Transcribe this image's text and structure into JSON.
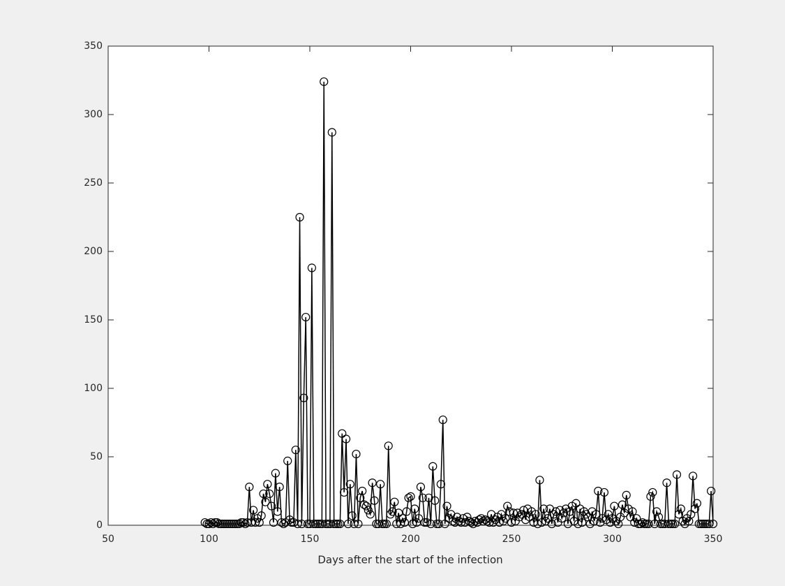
{
  "chart_data": {
    "type": "line",
    "xlabel": "Days after the start of the infection",
    "marker": "circle",
    "box": true,
    "series": [
      {
        "color": "#000000",
        "x": [
          98,
          99,
          100,
          101,
          102,
          103,
          104,
          105,
          106,
          107,
          108,
          109,
          110,
          111,
          112,
          113,
          114,
          115,
          116,
          117,
          118,
          119,
          120,
          121,
          122,
          123,
          124,
          125,
          126,
          127,
          128,
          129,
          130,
          131,
          132,
          133,
          134,
          135,
          136,
          137,
          138,
          139,
          140,
          141,
          142,
          143,
          144,
          145,
          146,
          147,
          148,
          149,
          150,
          151,
          152,
          153,
          154,
          155,
          156,
          157,
          158,
          159,
          160,
          161,
          162,
          163,
          164,
          165,
          166,
          167,
          168,
          169,
          170,
          171,
          172,
          173,
          174,
          175,
          176,
          177,
          178,
          179,
          180,
          181,
          182,
          183,
          184,
          185,
          186,
          187,
          188,
          189,
          190,
          191,
          192,
          193,
          194,
          195,
          196,
          197,
          198,
          199,
          200,
          201,
          202,
          203,
          204,
          205,
          206,
          207,
          208,
          209,
          210,
          211,
          212,
          213,
          214,
          215,
          216,
          217,
          218,
          219,
          220,
          221,
          222,
          223,
          224,
          225,
          226,
          227,
          228,
          229,
          230,
          231,
          232,
          233,
          234,
          235,
          236,
          237,
          238,
          239,
          240,
          241,
          242,
          243,
          244,
          245,
          246,
          247,
          248,
          249,
          250,
          251,
          252,
          253,
          254,
          255,
          256,
          257,
          258,
          259,
          260,
          261,
          262,
          263,
          264,
          265,
          266,
          267,
          268,
          269,
          270,
          271,
          272,
          273,
          274,
          275,
          276,
          277,
          278,
          279,
          280,
          281,
          282,
          283,
          284,
          285,
          286,
          287,
          288,
          289,
          290,
          291,
          292,
          293,
          294,
          295,
          296,
          297,
          298,
          299,
          300,
          301,
          302,
          303,
          304,
          305,
          306,
          307,
          308,
          309,
          310,
          311,
          312,
          313,
          314,
          315,
          316,
          317,
          318,
          319,
          320,
          321,
          322,
          323,
          324,
          325,
          326,
          327,
          328,
          329,
          330,
          331,
          332,
          333,
          334,
          335,
          336,
          337,
          338,
          339,
          340,
          341,
          342,
          343,
          344,
          345,
          346,
          347,
          348,
          349,
          350
        ],
        "values": [
          2,
          1,
          1,
          2,
          1,
          2,
          2,
          1,
          1,
          1,
          1,
          1,
          1,
          1,
          1,
          1,
          1,
          1,
          2,
          2,
          1,
          2,
          28,
          2,
          11,
          2,
          5,
          2,
          7,
          23,
          17,
          30,
          23,
          14,
          2,
          38,
          10,
          28,
          2,
          1,
          2,
          47,
          4,
          2,
          2,
          55,
          1,
          225,
          1,
          93,
          152,
          1,
          1,
          188,
          1,
          1,
          1,
          1,
          1,
          324,
          1,
          1,
          1,
          287,
          1,
          1,
          1,
          1,
          67,
          24,
          63,
          1,
          30,
          7,
          1,
          52,
          1,
          20,
          25,
          15,
          14,
          11,
          8,
          31,
          18,
          1,
          1,
          30,
          1,
          1,
          1,
          58,
          8,
          10,
          17,
          1,
          9,
          1,
          5,
          2,
          10,
          20,
          21,
          1,
          12,
          2,
          5,
          28,
          20,
          2,
          2,
          20,
          1,
          43,
          18,
          1,
          1,
          30,
          77,
          1,
          14,
          5,
          8,
          3,
          2,
          6,
          3,
          2,
          5,
          2,
          6,
          3,
          2,
          1,
          3,
          2,
          4,
          5,
          3,
          4,
          3,
          2,
          8,
          2,
          4,
          6,
          2,
          8,
          3,
          5,
          14,
          10,
          2,
          9,
          3,
          9,
          6,
          8,
          11,
          4,
          12,
          6,
          10,
          2,
          8,
          1,
          33,
          2,
          12,
          3,
          5,
          12,
          1,
          8,
          10,
          2,
          11,
          5,
          9,
          12,
          1,
          10,
          14,
          3,
          16,
          1,
          12,
          2,
          10,
          8,
          6,
          1,
          10,
          3,
          8,
          25,
          2,
          5,
          24,
          4,
          8,
          2,
          5,
          14,
          3,
          1,
          6,
          15,
          9,
          22,
          12,
          6,
          10,
          2,
          5,
          1,
          1,
          2,
          1,
          1,
          1,
          21,
          24,
          1,
          10,
          6,
          1,
          1,
          1,
          31,
          1,
          1,
          1,
          1,
          37,
          8,
          12,
          3,
          1,
          5,
          3,
          8,
          36,
          12,
          16,
          1,
          1,
          1,
          1,
          1,
          1,
          25,
          1
        ]
      }
    ],
    "xlim": [
      50,
      350
    ],
    "xticks": [
      50,
      100,
      150,
      200,
      250,
      300,
      350
    ],
    "ylim": [
      0,
      350
    ],
    "yticks": [
      0,
      50,
      100,
      150,
      200,
      250,
      300,
      350
    ]
  }
}
